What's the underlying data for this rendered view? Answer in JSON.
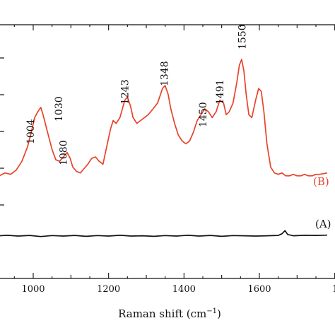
{
  "chart_data": {
    "type": "line",
    "xlabel": "Raman shift (cm",
    "xlabel_sup": "−1",
    "xlabel_close": ")",
    "xlim": [
      900,
      1780
    ],
    "ylim": [
      0,
      100
    ],
    "grid": false,
    "x_ticks": [
      1000,
      1200,
      1400,
      1600
    ],
    "x_tick_labels": [
      "1000",
      "1200",
      "1400",
      "1600"
    ],
    "x_tick_partial": "1",
    "y_ticks_count": 5,
    "colors": {
      "B": "#e8432b",
      "A": "#111111"
    },
    "series": [
      {
        "name": "(B)",
        "color": "#e8432b",
        "points": [
          [
            900,
            18
          ],
          [
            910,
            20
          ],
          [
            925,
            22
          ],
          [
            940,
            21
          ],
          [
            955,
            24
          ],
          [
            970,
            30
          ],
          [
            985,
            40
          ],
          [
            995,
            50
          ],
          [
            1004,
            60
          ],
          [
            1012,
            64
          ],
          [
            1020,
            67
          ],
          [
            1026,
            62
          ],
          [
            1030,
            58
          ],
          [
            1040,
            48
          ],
          [
            1050,
            38
          ],
          [
            1060,
            31
          ],
          [
            1070,
            30
          ],
          [
            1080,
            33
          ],
          [
            1090,
            36
          ],
          [
            1098,
            32
          ],
          [
            1105,
            26
          ],
          [
            1115,
            23
          ],
          [
            1125,
            22
          ],
          [
            1135,
            25
          ],
          [
            1145,
            28
          ],
          [
            1155,
            32
          ],
          [
            1165,
            33
          ],
          [
            1175,
            30
          ],
          [
            1185,
            28
          ],
          [
            1195,
            40
          ],
          [
            1205,
            52
          ],
          [
            1212,
            58
          ],
          [
            1220,
            56
          ],
          [
            1230,
            60
          ],
          [
            1243,
            72
          ],
          [
            1250,
            74
          ],
          [
            1258,
            68
          ],
          [
            1265,
            60
          ],
          [
            1275,
            56
          ],
          [
            1285,
            58
          ],
          [
            1295,
            60
          ],
          [
            1305,
            62
          ],
          [
            1318,
            66
          ],
          [
            1330,
            70
          ],
          [
            1343,
            80
          ],
          [
            1350,
            82
          ],
          [
            1358,
            76
          ],
          [
            1365,
            66
          ],
          [
            1375,
            56
          ],
          [
            1385,
            48
          ],
          [
            1395,
            44
          ],
          [
            1405,
            42
          ],
          [
            1415,
            44
          ],
          [
            1425,
            50
          ],
          [
            1435,
            58
          ],
          [
            1445,
            62
          ],
          [
            1455,
            66
          ],
          [
            1465,
            64
          ],
          [
            1475,
            60
          ],
          [
            1485,
            64
          ],
          [
            1495,
            72
          ],
          [
            1505,
            70
          ],
          [
            1512,
            62
          ],
          [
            1520,
            64
          ],
          [
            1530,
            70
          ],
          [
            1540,
            84
          ],
          [
            1547,
            96
          ],
          [
            1553,
            100
          ],
          [
            1559,
            92
          ],
          [
            1565,
            76
          ],
          [
            1572,
            62
          ],
          [
            1580,
            60
          ],
          [
            1590,
            72
          ],
          [
            1598,
            80
          ],
          [
            1605,
            78
          ],
          [
            1612,
            64
          ],
          [
            1620,
            42
          ],
          [
            1630,
            26
          ],
          [
            1640,
            22
          ],
          [
            1650,
            21
          ],
          [
            1660,
            22
          ],
          [
            1670,
            20
          ],
          [
            1680,
            20
          ],
          [
            1690,
            21
          ],
          [
            1700,
            20
          ],
          [
            1710,
            20
          ],
          [
            1720,
            21
          ],
          [
            1730,
            20
          ],
          [
            1740,
            20
          ],
          [
            1750,
            21
          ],
          [
            1760,
            21
          ],
          [
            1780,
            22
          ]
        ]
      },
      {
        "name": "(A)",
        "color": "#111111",
        "points": [
          [
            900,
            0
          ],
          [
            930,
            0.5
          ],
          [
            960,
            0
          ],
          [
            990,
            0.4
          ],
          [
            1020,
            -0.3
          ],
          [
            1050,
            0.3
          ],
          [
            1080,
            0
          ],
          [
            1110,
            0.4
          ],
          [
            1140,
            -0.2
          ],
          [
            1170,
            0.3
          ],
          [
            1200,
            0
          ],
          [
            1230,
            0.5
          ],
          [
            1260,
            0
          ],
          [
            1290,
            0.2
          ],
          [
            1320,
            -0.2
          ],
          [
            1350,
            0.3
          ],
          [
            1380,
            0
          ],
          [
            1410,
            0.5
          ],
          [
            1440,
            0
          ],
          [
            1470,
            0.4
          ],
          [
            1500,
            -0.2
          ],
          [
            1530,
            0.3
          ],
          [
            1560,
            0.2
          ],
          [
            1590,
            0
          ],
          [
            1620,
            0.2
          ],
          [
            1650,
            0.4
          ],
          [
            1660,
            1.5
          ],
          [
            1668,
            3.5
          ],
          [
            1675,
            1
          ],
          [
            1690,
            0.2
          ],
          [
            1720,
            0.5
          ],
          [
            1750,
            0.4
          ],
          [
            1780,
            0.6
          ]
        ]
      }
    ],
    "series_labels": [
      "(B)",
      "(A)"
    ],
    "annotations": [
      {
        "text": "1004",
        "x": 1004
      },
      {
        "text": "1030",
        "x": 1030
      },
      {
        "text": "1080",
        "x": 1080
      },
      {
        "text": "1243",
        "x": 1243
      },
      {
        "text": "1348",
        "x": 1348
      },
      {
        "text": "1450",
        "x": 1450
      },
      {
        "text": "1491",
        "x": 1491
      },
      {
        "text": "1550",
        "x": 1550
      }
    ]
  }
}
